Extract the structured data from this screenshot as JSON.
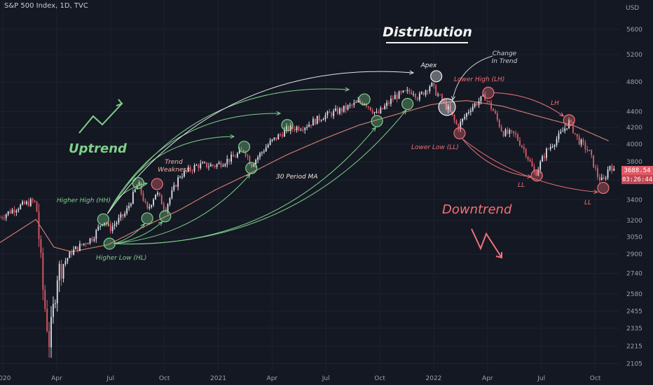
{
  "header": {
    "title": "S&P 500 Index, 1D, TVC"
  },
  "price_badge": {
    "price": "3688.54",
    "countdown": "03:26:44"
  },
  "colors": {
    "background": "#141823",
    "up_candle": "#dde1ea",
    "down_candle": "#e05a66",
    "moving_average": "#c97a6f",
    "uptrend_green": "#7fd18a",
    "downtrend_red": "#f07178",
    "grid": "#1e2230",
    "axis_text": "#9aa0ad"
  },
  "chart_data": {
    "type": "candlestick",
    "title": "S&P 500 Index, 1D, TVC",
    "y_axis": {
      "unit": "USD",
      "scale": "log",
      "ticks": [
        5600,
        5200,
        4800,
        4400,
        4200,
        4000,
        3800,
        3600,
        3400,
        3200,
        3050,
        2900,
        2740,
        2580,
        2455,
        2335,
        2215,
        2105
      ],
      "range": [
        2060,
        6100
      ]
    },
    "x_axis": {
      "ticks": [
        "2020",
        "Apr",
        "Jul",
        "Oct",
        "2021",
        "Apr",
        "Jul",
        "Oct",
        "2022",
        "Apr",
        "Jul",
        "Oct"
      ],
      "range": [
        "2020-01",
        "2022-10"
      ]
    },
    "grid": true,
    "price_path": [
      {
        "t": 0.0,
        "p": 3230
      },
      {
        "t": 1.0,
        "p": 3330
      },
      {
        "t": 1.9,
        "p": 3390
      },
      {
        "t": 2.05,
        "p": 3300
      },
      {
        "t": 2.4,
        "p": 2600
      },
      {
        "t": 2.75,
        "p": 2230
      },
      {
        "t": 3.2,
        "p": 2750
      },
      {
        "t": 4.0,
        "p": 2920
      },
      {
        "t": 5.2,
        "p": 3050
      },
      {
        "t": 5.75,
        "p": 3210
      },
      {
        "t": 6.1,
        "p": 3120
      },
      {
        "t": 7.0,
        "p": 3270
      },
      {
        "t": 7.7,
        "p": 3570
      },
      {
        "t": 8.2,
        "p": 3290
      },
      {
        "t": 8.7,
        "p": 3480
      },
      {
        "t": 9.2,
        "p": 3310
      },
      {
        "t": 10.0,
        "p": 3650
      },
      {
        "t": 11.0,
        "p": 3760
      },
      {
        "t": 12.0,
        "p": 3760
      },
      {
        "t": 13.0,
        "p": 3850
      },
      {
        "t": 13.6,
        "p": 3940
      },
      {
        "t": 14.0,
        "p": 3770
      },
      {
        "t": 15.0,
        "p": 4010
      },
      {
        "t": 16.0,
        "p": 4180
      },
      {
        "t": 17.0,
        "p": 4220
      },
      {
        "t": 18.0,
        "p": 4340
      },
      {
        "t": 19.0,
        "p": 4420
      },
      {
        "t": 20.0,
        "p": 4520
      },
      {
        "t": 20.3,
        "p": 4530
      },
      {
        "t": 21.0,
        "p": 4360
      },
      {
        "t": 22.0,
        "p": 4600
      },
      {
        "t": 23.0,
        "p": 4680
      },
      {
        "t": 23.3,
        "p": 4580
      },
      {
        "t": 24.0,
        "p": 4770
      },
      {
        "t": 24.3,
        "p": 4650
      },
      {
        "t": 25.0,
        "p": 4420
      },
      {
        "t": 25.5,
        "p": 4200
      },
      {
        "t": 26.2,
        "p": 4450
      },
      {
        "t": 27.0,
        "p": 4600
      },
      {
        "t": 27.5,
        "p": 4400
      },
      {
        "t": 28.0,
        "p": 4140
      },
      {
        "t": 28.7,
        "p": 4110
      },
      {
        "t": 29.3,
        "p": 3900
      },
      {
        "t": 29.8,
        "p": 3660
      },
      {
        "t": 30.4,
        "p": 3910
      },
      {
        "t": 31.2,
        "p": 4110
      },
      {
        "t": 31.7,
        "p": 4270
      },
      {
        "t": 32.2,
        "p": 4050
      },
      {
        "t": 32.8,
        "p": 3920
      },
      {
        "t": 33.3,
        "p": 3640
      },
      {
        "t": 33.6,
        "p": 3580
      },
      {
        "t": 34.0,
        "p": 3780
      },
      {
        "t": 34.2,
        "p": 3690
      }
    ],
    "moving_average": {
      "name": "30 Period MA",
      "path": [
        {
          "t": 0.0,
          "p": 3000
        },
        {
          "t": 2.0,
          "p": 3210
        },
        {
          "t": 3.0,
          "p": 2960
        },
        {
          "t": 4.0,
          "p": 2920
        },
        {
          "t": 6.0,
          "p": 2980
        },
        {
          "t": 8.0,
          "p": 3140
        },
        {
          "t": 10.0,
          "p": 3300
        },
        {
          "t": 12.0,
          "p": 3500
        },
        {
          "t": 14.0,
          "p": 3680
        },
        {
          "t": 16.0,
          "p": 3880
        },
        {
          "t": 18.0,
          "p": 4060
        },
        {
          "t": 20.0,
          "p": 4230
        },
        {
          "t": 22.0,
          "p": 4360
        },
        {
          "t": 24.0,
          "p": 4490
        },
        {
          "t": 25.0,
          "p": 4525
        },
        {
          "t": 26.0,
          "p": 4545
        },
        {
          "t": 28.0,
          "p": 4470
        },
        {
          "t": 30.0,
          "p": 4340
        },
        {
          "t": 32.0,
          "p": 4220
        },
        {
          "t": 34.0,
          "p": 4030
        }
      ]
    },
    "annotations": {
      "section_title": "Distribution",
      "uptrend": "Uptrend",
      "downtrend": "Downtrend",
      "higher_high": "Higher High (HH)",
      "higher_low": "Higher Low (HL)",
      "trend_weakness_1": "Trend",
      "trend_weakness_2": "Weakness",
      "ma_label": "30 Period MA",
      "apex": "Apex",
      "change_in_trend_1": "Change",
      "change_in_trend_2": "In Trend",
      "lower_high": "Lower High (LH)",
      "lower_low": "Lower Low (LL)",
      "lh": "LH",
      "ll_1": "LL",
      "ll_2": "LL"
    },
    "markers": [
      {
        "label": "HH",
        "t": 5.75,
        "p": 3210,
        "kind": "green"
      },
      {
        "label": "HL",
        "t": 6.1,
        "p": 2990,
        "kind": "green"
      },
      {
        "label": "HH",
        "t": 7.7,
        "p": 3570,
        "kind": "green"
      },
      {
        "label": "HL",
        "t": 8.2,
        "p": 3220,
        "kind": "green"
      },
      {
        "label": "Weakness",
        "t": 8.75,
        "p": 3560,
        "kind": "red"
      },
      {
        "label": "HL",
        "t": 9.2,
        "p": 3240,
        "kind": "green"
      },
      {
        "label": "HH",
        "t": 13.6,
        "p": 3970,
        "kind": "green"
      },
      {
        "label": "HL",
        "t": 14.0,
        "p": 3730,
        "kind": "green"
      },
      {
        "label": "HH",
        "t": 16.0,
        "p": 4230,
        "kind": "green"
      },
      {
        "label": "HH",
        "t": 20.3,
        "p": 4560,
        "kind": "green"
      },
      {
        "label": "HL",
        "t": 21.0,
        "p": 4280,
        "kind": "green"
      },
      {
        "label": "HL",
        "t": 22.7,
        "p": 4500,
        "kind": "green"
      },
      {
        "label": "Apex",
        "t": 24.3,
        "p": 4880,
        "kind": "white"
      },
      {
        "label": "Change",
        "t": 24.9,
        "p": 4460,
        "kind": "white"
      },
      {
        "label": "LL",
        "t": 25.6,
        "p": 4130,
        "kind": "red"
      },
      {
        "label": "LH",
        "t": 27.2,
        "p": 4650,
        "kind": "red"
      },
      {
        "label": "LL",
        "t": 29.9,
        "p": 3650,
        "kind": "red"
      },
      {
        "label": "LH",
        "t": 31.7,
        "p": 4290,
        "kind": "red"
      },
      {
        "label": "LL",
        "t": 33.6,
        "p": 3520,
        "kind": "red"
      }
    ]
  }
}
